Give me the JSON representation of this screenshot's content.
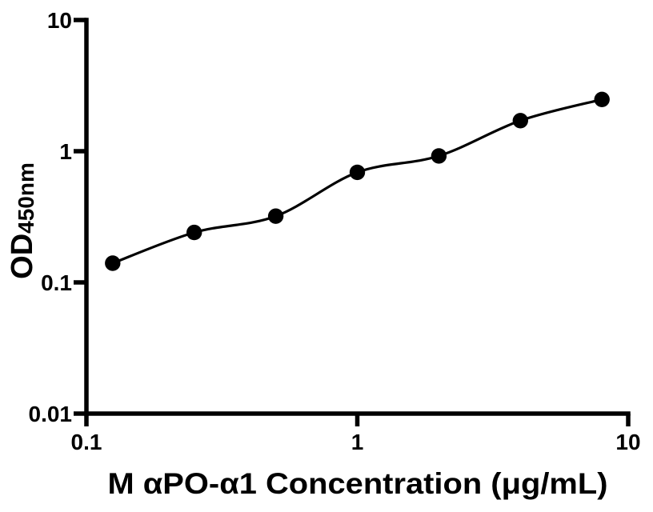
{
  "figure": {
    "background": "#ffffff"
  },
  "chart_data": {
    "type": "scatter",
    "x": [
      0.125,
      0.25,
      0.5,
      1,
      2,
      4,
      8
    ],
    "y": [
      0.14,
      0.24,
      0.32,
      0.69,
      0.92,
      1.71,
      2.48
    ],
    "xlabel": "M αPO-α1 Concentration (μg/mL)",
    "ylabel": "OD",
    "ylabel_subscript": "450nm",
    "x_scale": "log",
    "y_scale": "log",
    "xlim": [
      0.1,
      10
    ],
    "ylim": [
      0.01,
      10
    ],
    "x_tick_values": [
      0.1,
      1,
      10
    ],
    "x_tick_labels": [
      "0.1",
      "1",
      "10"
    ],
    "y_tick_values": [
      0.01,
      0.1,
      1,
      10
    ],
    "y_tick_labels": [
      "0.01",
      "0.1",
      "1",
      "10"
    ],
    "grid": false,
    "legend": false,
    "curve": "smooth fit through points",
    "marker_color": "#000000",
    "line_color": "#000000",
    "axis_color": "#000000",
    "text_color": "#000000"
  }
}
